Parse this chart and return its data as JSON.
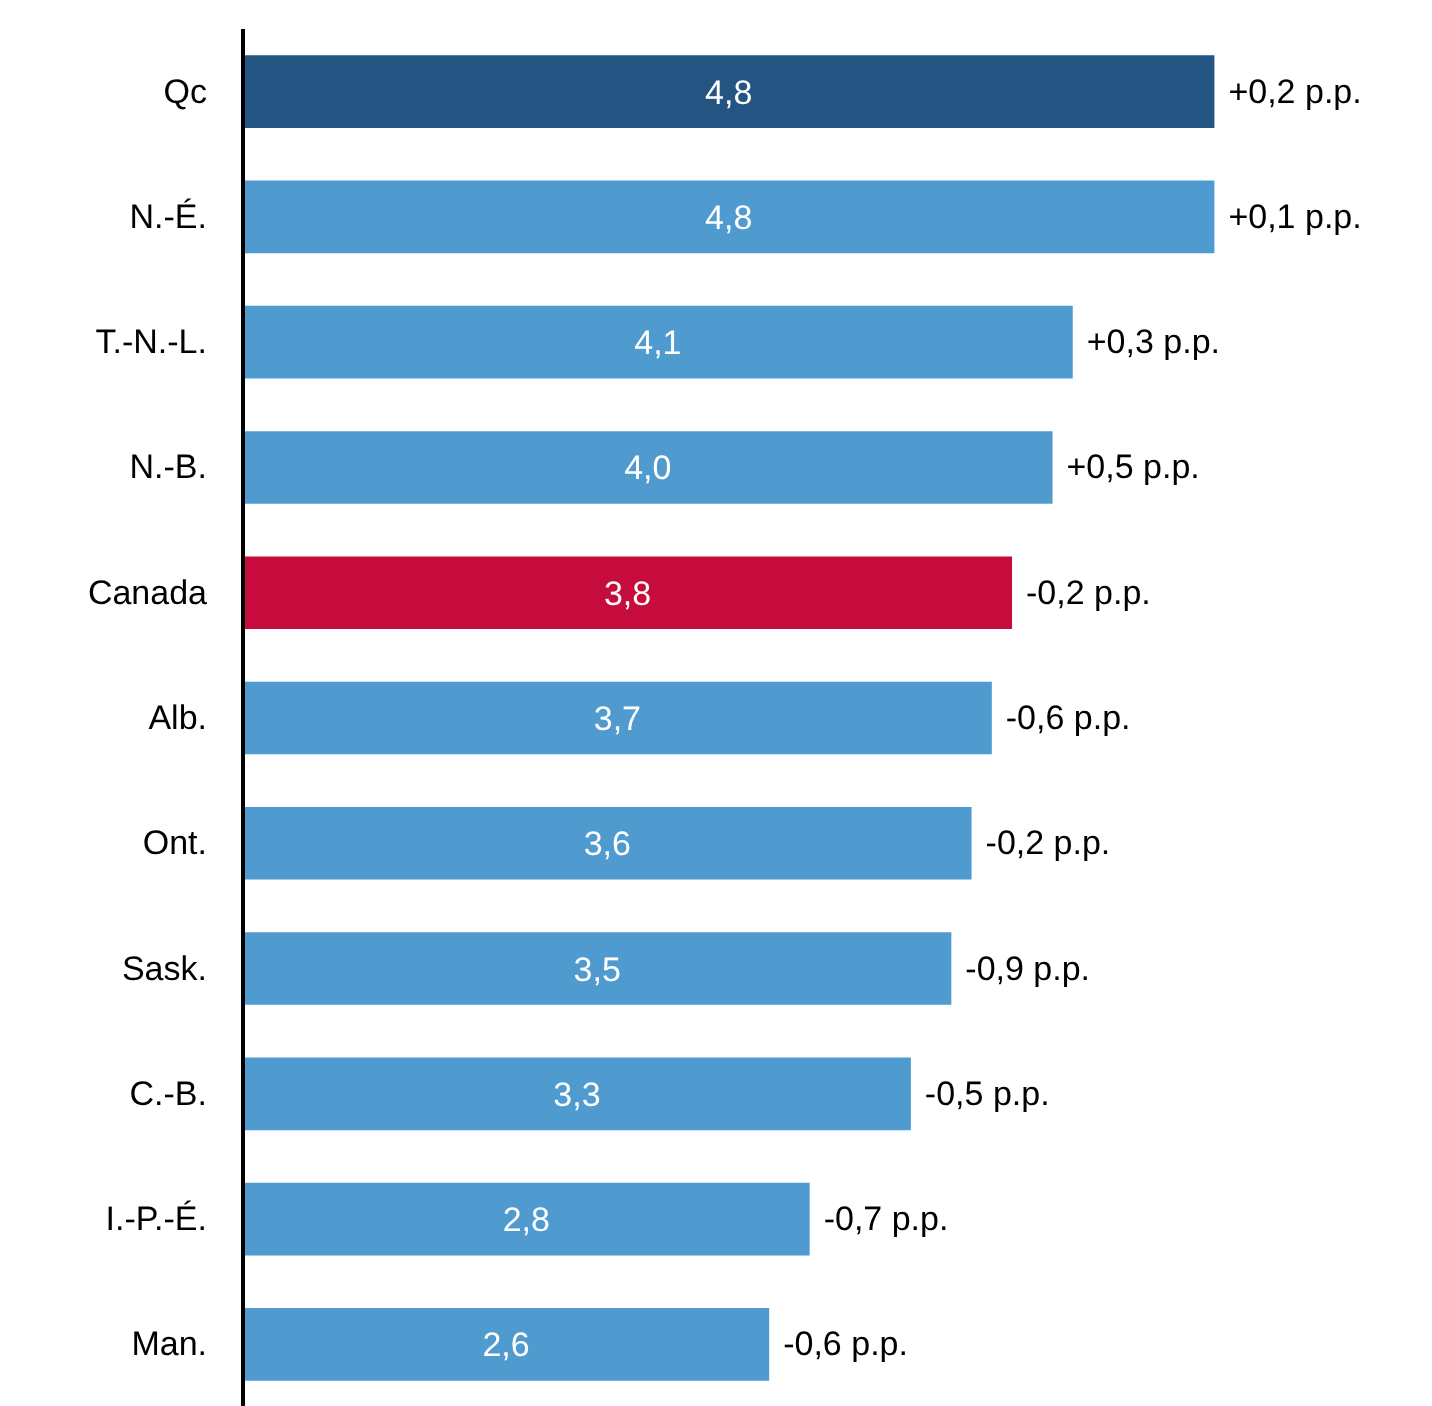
{
  "chart_data": {
    "type": "bar",
    "orientation": "horizontal",
    "categories": [
      "Qc",
      "N.-É.",
      "T.-N.-L.",
      "N.-B.",
      "Canada",
      "Alb.",
      "Ont.",
      "Sask.",
      "C.-B.",
      "I.-P.-É.",
      "Man."
    ],
    "values": [
      4.8,
      4.8,
      4.1,
      4.0,
      3.8,
      3.7,
      3.6,
      3.5,
      3.3,
      2.8,
      2.6
    ],
    "value_labels": [
      "4,8",
      "4,8",
      "4,1",
      "4,0",
      "3,8",
      "3,7",
      "3,6",
      "3,5",
      "3,3",
      "2,8",
      "2,6"
    ],
    "colors": [
      "#245482",
      "#4f9bd0",
      "#4f9bd0",
      "#4f9bd0",
      "#c50c3c",
      "#4f9bd0",
      "#4f9bd0",
      "#4f9bd0",
      "#4f9bd0",
      "#4f9bd0",
      "#4f9bd0"
    ],
    "tick_labels": "y",
    "grid": false,
    "annotations": [
      {
        "text": "+0,2 p.p.",
        "x": 4.8,
        "y": "Qc"
      },
      {
        "text": "+0,1 p.p.",
        "x": 4.8,
        "y": "N.-É."
      },
      {
        "text": "+0,3 p.p.",
        "x": 4.1,
        "y": "T.-N.-L."
      },
      {
        "text": "+0,5 p.p.",
        "x": 4.0,
        "y": "N.-B."
      },
      {
        "text": "-0,2 p.p.",
        "x": 3.8,
        "y": "Canada"
      },
      {
        "text": "-0,6 p.p.",
        "x": 3.7,
        "y": "Alb."
      },
      {
        "text": "-0,2 p.p.",
        "x": 3.6,
        "y": "Ont."
      },
      {
        "text": "-0,9 p.p.",
        "x": 3.5,
        "y": "Sask."
      },
      {
        "text": "-0,5 p.p.",
        "x": 3.3,
        "y": "C.-B."
      },
      {
        "text": "-0,7 p.p.",
        "x": 2.8,
        "y": "I.-P.-É."
      },
      {
        "text": "-0,6 p.p.",
        "x": 2.6,
        "y": "Man."
      }
    ]
  }
}
